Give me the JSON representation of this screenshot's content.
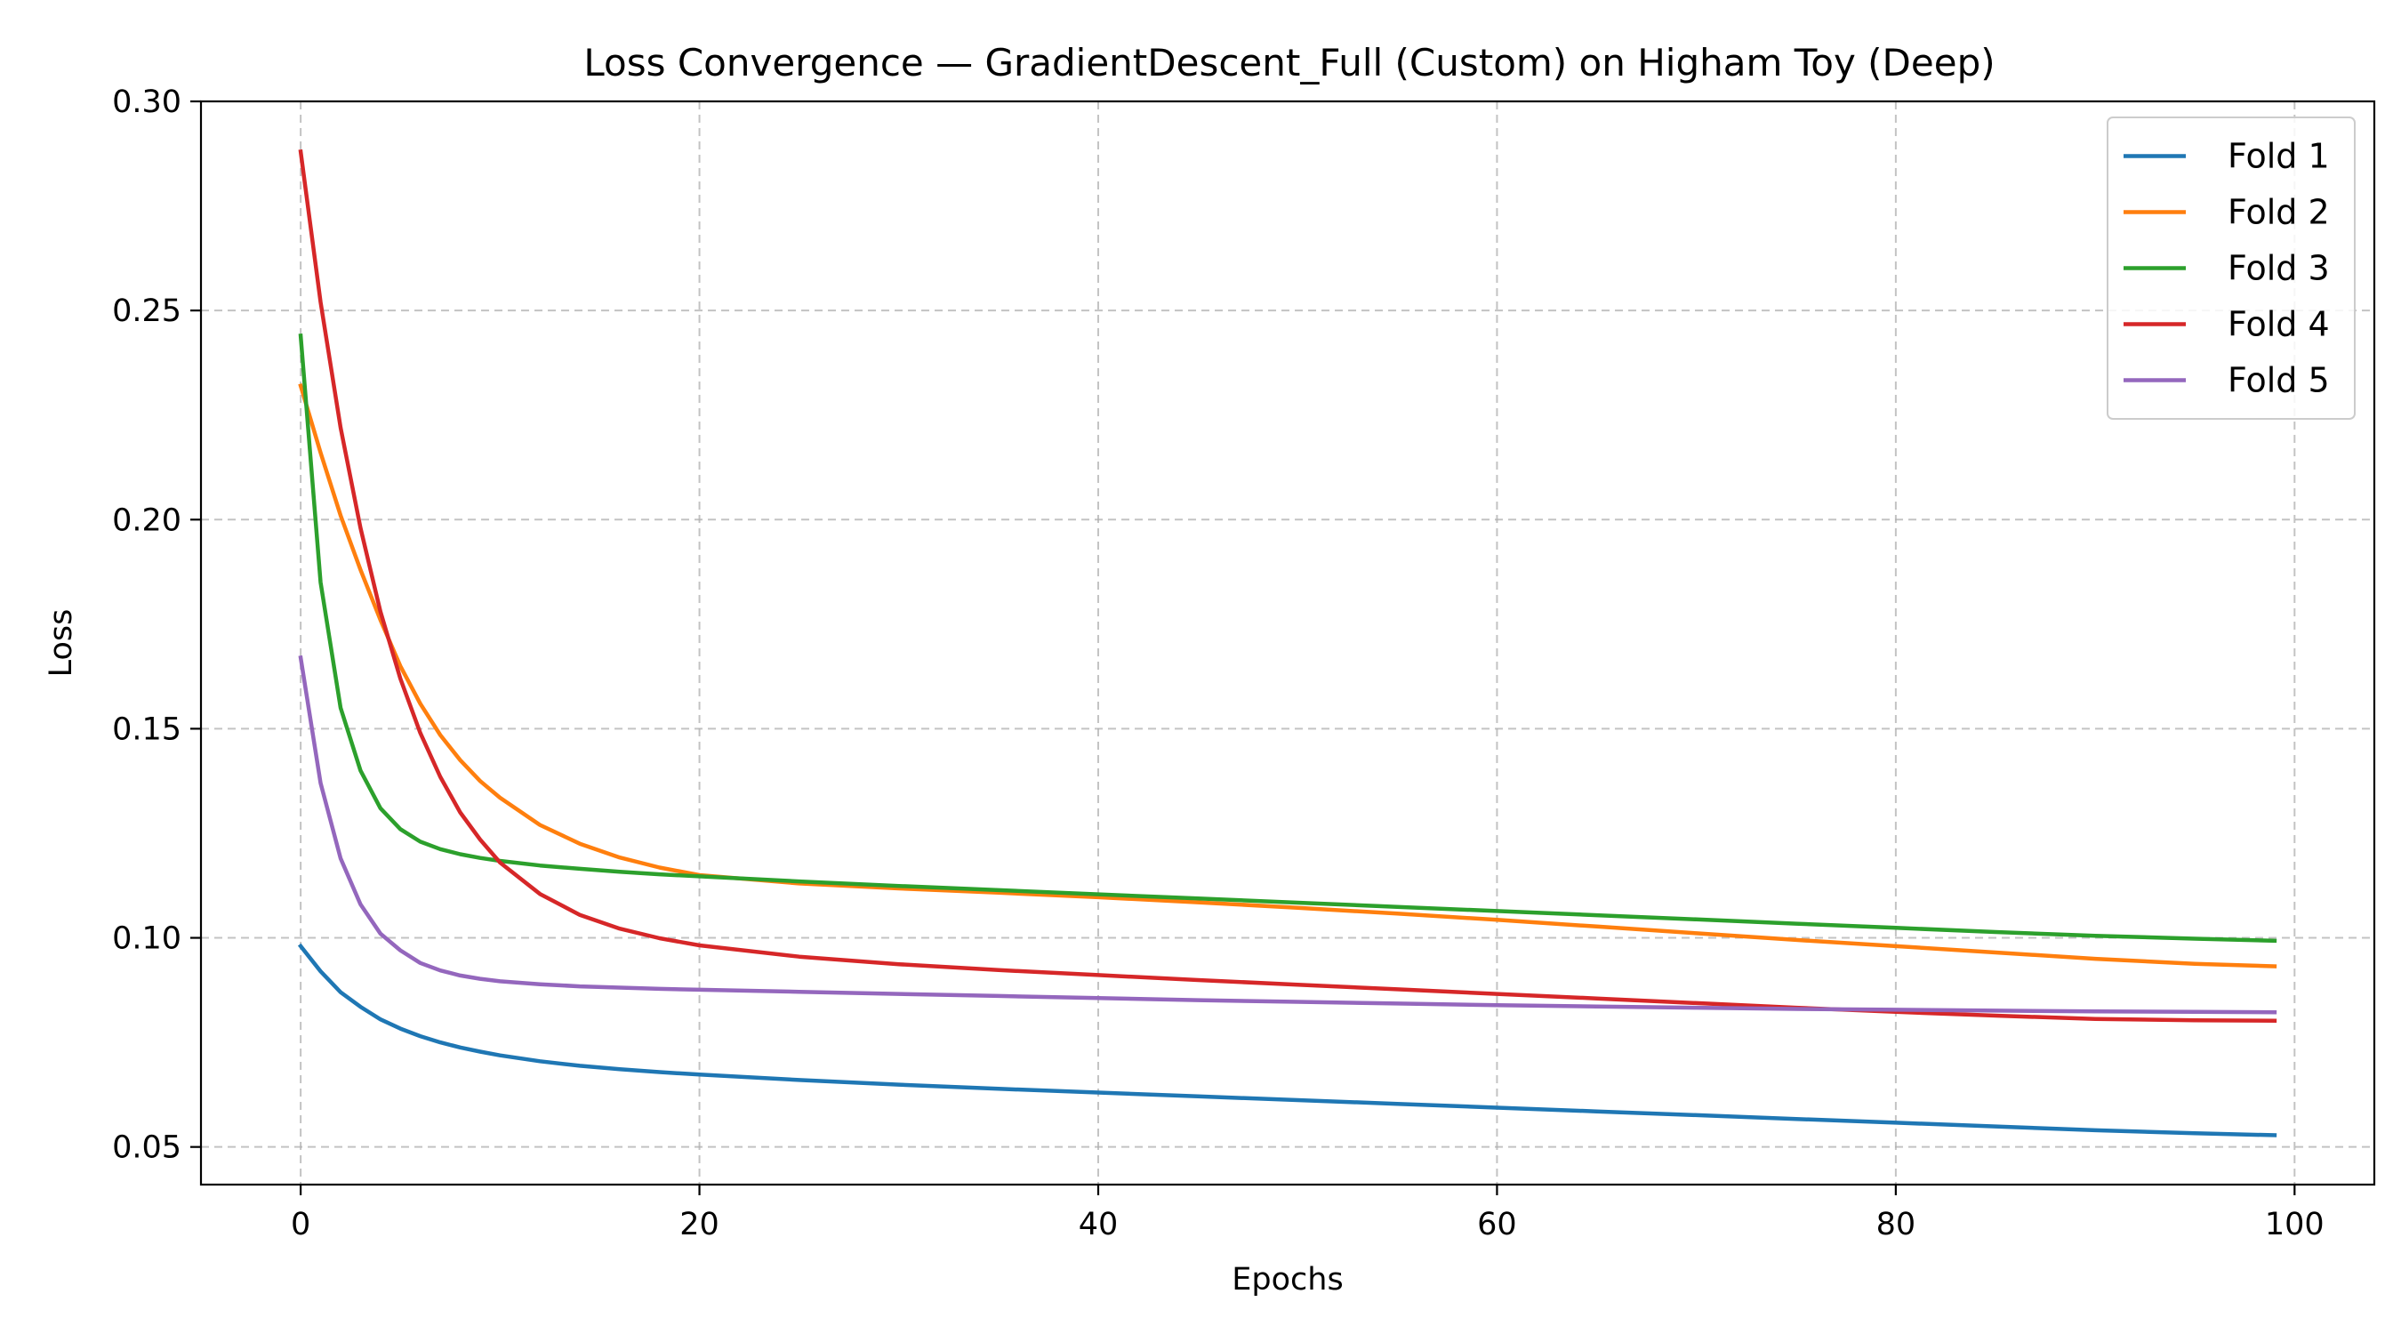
{
  "chart_data": {
    "type": "line",
    "title": "Loss Convergence — GradientDescent_Full (Custom) on Higham Toy (Deep)",
    "xlabel": "Epochs",
    "ylabel": "Loss",
    "xlim": [
      -5,
      104
    ],
    "ylim": [
      0.041,
      0.3
    ],
    "xticks": [
      0,
      20,
      40,
      60,
      80,
      100
    ],
    "xtick_labels": [
      "0",
      "20",
      "40",
      "60",
      "80",
      "100"
    ],
    "yticks": [
      0.05,
      0.1,
      0.15,
      0.2,
      0.25,
      0.3
    ],
    "ytick_labels": [
      "0.05",
      "0.10",
      "0.15",
      "0.20",
      "0.25",
      "0.30"
    ],
    "grid": true,
    "legend_position": "top-right",
    "series": [
      {
        "name": "Fold 1",
        "color": "#1f77b4",
        "x": [
          0,
          1,
          2,
          3,
          4,
          5,
          6,
          7,
          8,
          9,
          10,
          12,
          14,
          16,
          18,
          20,
          25,
          30,
          35,
          40,
          45,
          50,
          55,
          60,
          65,
          70,
          75,
          80,
          85,
          90,
          95,
          99
        ],
        "y": [
          0.098,
          0.092,
          0.087,
          0.0835,
          0.0805,
          0.0783,
          0.0765,
          0.075,
          0.0738,
          0.0728,
          0.0719,
          0.0705,
          0.0694,
          0.0686,
          0.0679,
          0.0673,
          0.066,
          0.0649,
          0.0639,
          0.063,
          0.0621,
          0.0612,
          0.0603,
          0.0594,
          0.0585,
          0.0576,
          0.0567,
          0.0558,
          0.0549,
          0.054,
          0.0533,
          0.0528
        ]
      },
      {
        "name": "Fold 2",
        "color": "#ff7f0e",
        "x": [
          0,
          1,
          2,
          3,
          4,
          5,
          6,
          7,
          8,
          9,
          10,
          12,
          14,
          16,
          18,
          20,
          25,
          30,
          35,
          40,
          45,
          50,
          55,
          60,
          65,
          70,
          75,
          80,
          85,
          90,
          95,
          99
        ],
        "y": [
          0.232,
          0.216,
          0.201,
          0.188,
          0.176,
          0.165,
          0.156,
          0.1485,
          0.1425,
          0.1375,
          0.1335,
          0.127,
          0.1225,
          0.1192,
          0.1168,
          0.115,
          0.113,
          0.1118,
          0.1108,
          0.1097,
          0.1085,
          0.1072,
          0.1058,
          0.1043,
          0.1027,
          0.1011,
          0.0995,
          0.098,
          0.0965,
          0.095,
          0.0938,
          0.0932
        ]
      },
      {
        "name": "Fold 3",
        "color": "#2ca02c",
        "x": [
          0,
          1,
          2,
          3,
          4,
          5,
          6,
          7,
          8,
          9,
          10,
          12,
          14,
          16,
          18,
          20,
          25,
          30,
          35,
          40,
          45,
          50,
          55,
          60,
          65,
          70,
          75,
          80,
          85,
          90,
          95,
          99
        ],
        "y": [
          0.244,
          0.185,
          0.155,
          0.14,
          0.131,
          0.126,
          0.123,
          0.1212,
          0.12,
          0.1191,
          0.1184,
          0.1173,
          0.1165,
          0.1158,
          0.1152,
          0.1147,
          0.1135,
          0.1124,
          0.1114,
          0.1104,
          0.1094,
          0.1084,
          0.1074,
          0.1064,
          0.1054,
          0.1044,
          0.1034,
          0.1024,
          0.1014,
          0.1005,
          0.0998,
          0.0993
        ]
      },
      {
        "name": "Fold 4",
        "color": "#d62728",
        "x": [
          0,
          1,
          2,
          3,
          4,
          5,
          6,
          7,
          8,
          9,
          10,
          12,
          14,
          16,
          18,
          20,
          25,
          30,
          35,
          40,
          45,
          50,
          55,
          60,
          65,
          70,
          75,
          80,
          85,
          90,
          95,
          99
        ],
        "y": [
          0.288,
          0.252,
          0.222,
          0.198,
          0.178,
          0.162,
          0.149,
          0.1385,
          0.13,
          0.1235,
          0.118,
          0.1105,
          0.1055,
          0.1022,
          0.0999,
          0.0982,
          0.0955,
          0.0937,
          0.0923,
          0.0911,
          0.0899,
          0.0888,
          0.0877,
          0.0866,
          0.0855,
          0.0844,
          0.0833,
          0.0823,
          0.0814,
          0.0806,
          0.0803,
          0.0802
        ]
      },
      {
        "name": "Fold 5",
        "color": "#9467bd",
        "x": [
          0,
          1,
          2,
          3,
          4,
          5,
          6,
          7,
          8,
          9,
          10,
          12,
          14,
          16,
          18,
          20,
          25,
          30,
          35,
          40,
          45,
          50,
          55,
          60,
          65,
          70,
          75,
          80,
          85,
          90,
          95,
          99
        ],
        "y": [
          0.167,
          0.137,
          0.119,
          0.108,
          0.101,
          0.097,
          0.094,
          0.0922,
          0.091,
          0.0902,
          0.0896,
          0.0889,
          0.0884,
          0.0881,
          0.0878,
          0.0876,
          0.0871,
          0.0866,
          0.0861,
          0.0856,
          0.0851,
          0.0847,
          0.0843,
          0.0839,
          0.0836,
          0.0833,
          0.083,
          0.0828,
          0.0826,
          0.0824,
          0.0823,
          0.0822
        ]
      }
    ]
  }
}
